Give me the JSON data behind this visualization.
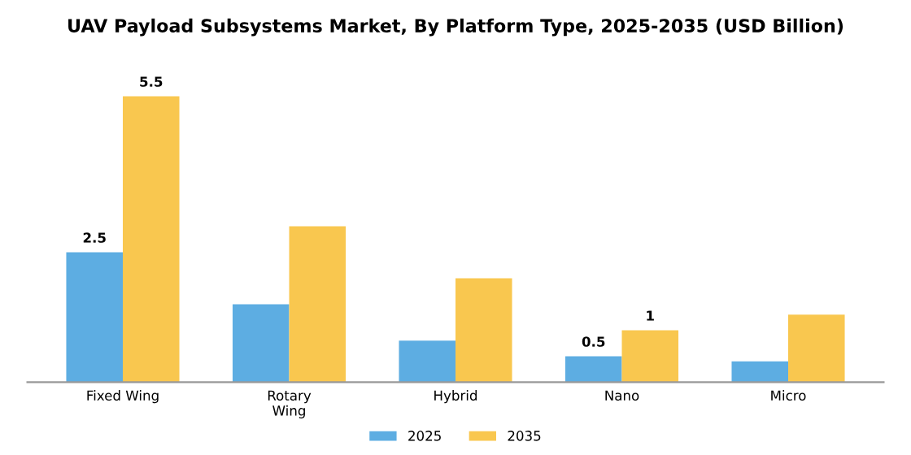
{
  "chart_data": {
    "type": "bar",
    "title": "UAV Payload Subsystems Market, By Platform Type, 2025-2035 (USD Billion)",
    "categories": [
      "Fixed Wing",
      "Rotary\nWing",
      "Hybrid",
      "Nano",
      "Micro"
    ],
    "series": [
      {
        "name": "2025",
        "color": "#5dade2",
        "values": [
          2.5,
          1.5,
          0.8,
          0.5,
          0.4
        ],
        "value_labels": [
          "2.5",
          null,
          null,
          "0.5",
          null
        ]
      },
      {
        "name": "2035",
        "color": "#f9c74f",
        "values": [
          5.5,
          3.0,
          2.0,
          1,
          1.3
        ],
        "value_labels": [
          "5.5",
          null,
          null,
          "1",
          null
        ]
      }
    ],
    "legend": "bottom",
    "grid": false,
    "tick_labels": "x"
  }
}
